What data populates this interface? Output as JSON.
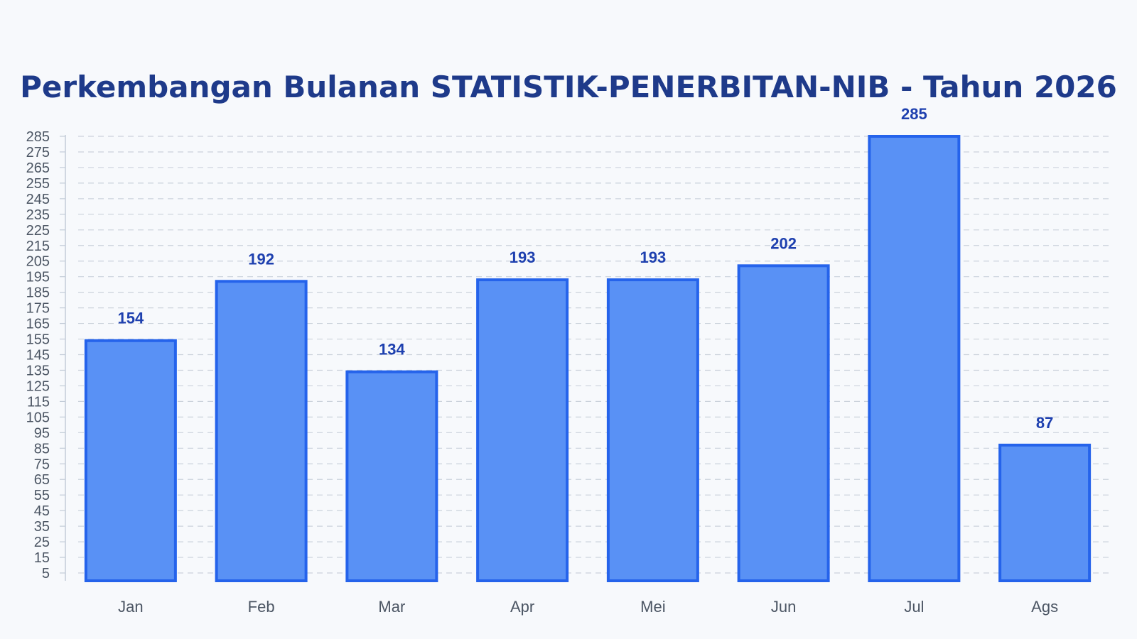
{
  "chart_data": {
    "type": "bar",
    "title": "Perkembangan Bulanan STATISTIK-PENERBITAN-NIB - Tahun 2026",
    "categories": [
      "Jan",
      "Feb",
      "Mar",
      "Apr",
      "Mei",
      "Jun",
      "Jul",
      "Ags"
    ],
    "values": [
      154,
      192,
      134,
      193,
      193,
      202,
      285,
      87
    ],
    "xlabel": "",
    "ylabel": "",
    "ylim": [
      0,
      285
    ],
    "yticks": [
      5,
      15,
      25,
      35,
      45,
      55,
      65,
      75,
      85,
      95,
      105,
      115,
      125,
      135,
      145,
      155,
      165,
      175,
      185,
      195,
      205,
      215,
      225,
      235,
      245,
      255,
      265,
      275,
      285
    ],
    "grid": true,
    "legend": "none",
    "colors": {
      "bar_fill": "#5991f5",
      "bar_stroke": "#2563eb",
      "title": "#1e3a8a",
      "value_label": "#1e40af",
      "grid": "#cbd2db",
      "axis": "#c3ccd8",
      "tick_text": "#4b5563"
    }
  }
}
